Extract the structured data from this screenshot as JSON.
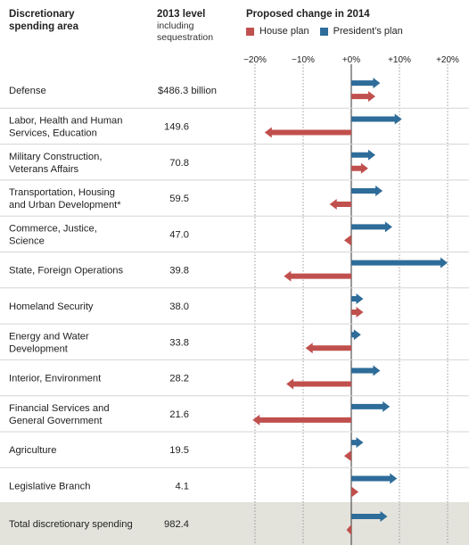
{
  "headers": {
    "area_line1": "Discretionary",
    "area_line2": "spending area",
    "level_line1": "2013 level",
    "level_line2": "including",
    "level_line3": "sequestration",
    "change_title": "Proposed change in 2014"
  },
  "chart_data": {
    "type": "bar",
    "orientation": "horizontal",
    "title": "Proposed change in 2014",
    "xlim": [
      -20,
      20
    ],
    "x_ticks": [
      "−20%",
      "−10%",
      "+0%",
      "+10%",
      "+20%"
    ],
    "x_tick_values": [
      -20,
      -10,
      0,
      10,
      20
    ],
    "grid": true,
    "legend": {
      "placement": "top"
    },
    "series": [
      {
        "name": "House plan",
        "color": "#c0504d",
        "key": "house"
      },
      {
        "name": "President’s plan",
        "color": "#2e6c99",
        "key": "president"
      }
    ],
    "rows": [
      {
        "lines": [
          "Defense"
        ],
        "level": "$486.3 billion",
        "president": 6,
        "house": 5
      },
      {
        "lines": [
          "Labor, Health and Human",
          "Services, Education"
        ],
        "level": "149.6",
        "president": 10.5,
        "house": -18
      },
      {
        "lines": [
          "Military Construction,",
          "Veterans Affairs"
        ],
        "level": "70.8",
        "president": 5,
        "house": 3.5
      },
      {
        "lines": [
          "Transportation, Housing",
          "and Urban Development*"
        ],
        "level": "59.5",
        "president": 6.5,
        "house": -4.5
      },
      {
        "lines": [
          "Commerce, Justice,",
          "Science"
        ],
        "level": "47.0",
        "president": 8.5,
        "house": -1.5
      },
      {
        "lines": [
          "State, Foreign Operations"
        ],
        "level": "39.8",
        "president": 20,
        "house": -14
      },
      {
        "lines": [
          "Homeland Security"
        ],
        "level": "38.0",
        "president": 2.5,
        "house": 2.5
      },
      {
        "lines": [
          "Energy and Water",
          "Development"
        ],
        "level": "33.8",
        "president": 2,
        "house": -9.5
      },
      {
        "lines": [
          "Interior, Environment"
        ],
        "level": "28.2",
        "president": 6,
        "house": -13.5
      },
      {
        "lines": [
          "Financial Services and",
          "General Government"
        ],
        "level": "21.6",
        "president": 8,
        "house": -20.5
      },
      {
        "lines": [
          "Agriculture"
        ],
        "level": "19.5",
        "president": 2.5,
        "house": -1.5
      },
      {
        "lines": [
          "Legislative Branch"
        ],
        "level": "4.1",
        "president": 9.5,
        "house": 1.5
      },
      {
        "lines": [
          "Total discretionary spending"
        ],
        "level": "982.4",
        "president": 7.5,
        "house": -1,
        "total": true
      }
    ]
  }
}
